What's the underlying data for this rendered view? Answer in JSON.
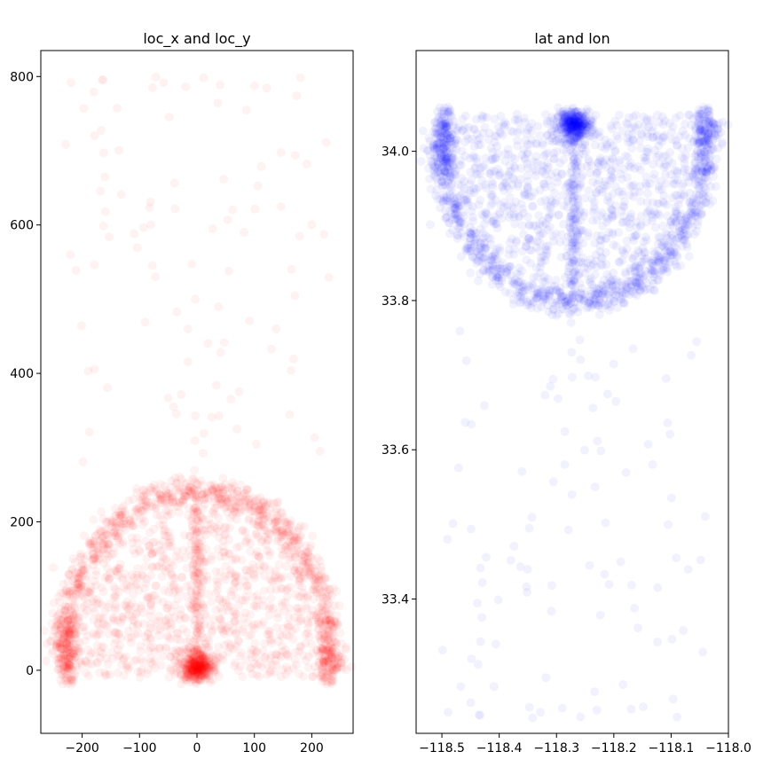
{
  "chart_data": [
    {
      "type": "scatter",
      "title": "loc_x and loc_y",
      "xlabel": "",
      "ylabel": "",
      "xlim": [
        -272,
        272
      ],
      "ylim": [
        -85,
        835
      ],
      "xticks": [
        -200,
        -100,
        0,
        100,
        200
      ],
      "xtick_labels": [
        "−200",
        "−100",
        "0",
        "100",
        "200"
      ],
      "yticks": [
        0,
        200,
        400,
        600,
        800
      ],
      "ytick_labels": [
        "0",
        "200",
        "400",
        "600",
        "800"
      ],
      "color": "#ff0000",
      "point_alpha": 0.03,
      "grid": false,
      "legend": "none",
      "description_regions": {
        "dense_semicircle_arc": {
          "center": [
            0,
            0
          ],
          "radius": 237
        },
        "hotspot": [
          0,
          5
        ],
        "sparse_range_y": [
          300,
          800
        ]
      }
    },
    {
      "type": "scatter",
      "title": "lat and lon",
      "xlabel": "",
      "ylabel": "",
      "xlim": [
        -118.545,
        -118.0
      ],
      "ylim": [
        33.22,
        34.135
      ],
      "xticks": [
        -118.5,
        -118.4,
        -118.3,
        -118.2,
        -118.1,
        -118.0
      ],
      "xtick_labels": [
        "−118.5",
        "−118.4",
        "−118.3",
        "−118.2",
        "−118.1",
        "−118.0"
      ],
      "yticks": [
        33.4,
        33.6,
        33.8,
        34.0
      ],
      "ytick_labels": [
        "33.4",
        "33.6",
        "33.8",
        "34.0"
      ],
      "color": "#0000ff",
      "point_alpha": 0.03,
      "grid": false,
      "legend": "none",
      "description_regions": {
        "dense_semicircle_arc": {
          "center": [
            -118.27,
            34.04
          ],
          "radius_deg": 0.237
        },
        "hotspot": [
          -118.27,
          34.04
        ],
        "sparse_range_lat": [
          33.25,
          33.75
        ]
      }
    }
  ]
}
